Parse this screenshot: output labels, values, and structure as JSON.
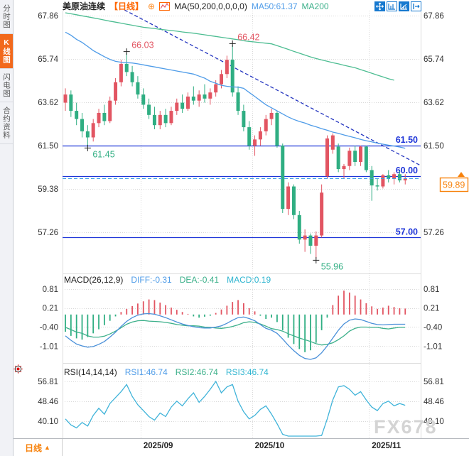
{
  "header": {
    "symbol": "美原油连续",
    "period_tag": "【日线】",
    "add_icon_glyph": "⊕",
    "ma_settings": "MA(50,200,0,0,0,0)",
    "ma50_label": "MA50:61.37",
    "ma200_label": "MA200"
  },
  "sidebar": {
    "items": [
      {
        "label": "分时图",
        "active": false
      },
      {
        "label": "K线图",
        "active": true
      },
      {
        "label": "闪电图",
        "active": false
      },
      {
        "label": "合约资料",
        "active": false
      }
    ]
  },
  "footer": {
    "period_label": "日线",
    "period_arrow": "▲"
  },
  "watermark": "FX678",
  "colors": {
    "up": "#e25562",
    "down": "#2fae82",
    "ma50": "#4f9ce8",
    "ma200": "#4dbd92",
    "hline": "#1d34d8",
    "trend": "#2233bf",
    "current_dash": "#3e9fe5",
    "accent": "#f7820c",
    "diff": "#4a90d9",
    "dea": "#3cb08a",
    "macd_cyan": "#2fb5d0",
    "rsi": "#3fb3d9",
    "axis_text": "#333333",
    "grid": "#d9d9d9",
    "separator": "#dcdcdc",
    "marker": "#222222",
    "watermark": "#d4d4d4"
  },
  "chart_data": {
    "type": "candlestick-with-indicators",
    "price_axis_ticks": [
      "67.86",
      "65.74",
      "63.62",
      "61.50",
      "59.38",
      "57.26"
    ],
    "right_axis_hidden_tick": "59.38",
    "x_labels": [
      "2025/09",
      "2025/10",
      "2025/11"
    ],
    "month_start_indices": [
      14,
      34,
      55
    ],
    "candles": [
      [
        63.6,
        64.3,
        63.2,
        64.0
      ],
      [
        64.0,
        64.2,
        62.9,
        63.2
      ],
      [
        63.2,
        63.6,
        62.5,
        62.8
      ],
      [
        62.8,
        63.1,
        61.9,
        62.2
      ],
      [
        62.2,
        62.5,
        61.45,
        61.9
      ],
      [
        61.9,
        62.8,
        61.7,
        62.6
      ],
      [
        62.6,
        63.3,
        62.4,
        63.1
      ],
      [
        63.1,
        63.5,
        62.5,
        62.7
      ],
      [
        62.7,
        63.9,
        62.6,
        63.7
      ],
      [
        63.7,
        64.8,
        63.5,
        64.6
      ],
      [
        64.6,
        65.7,
        64.4,
        65.5
      ],
      [
        65.5,
        66.03,
        64.9,
        65.1
      ],
      [
        65.1,
        65.4,
        64.4,
        64.6
      ],
      [
        64.6,
        64.9,
        63.8,
        64.0
      ],
      [
        64.0,
        64.3,
        63.3,
        63.5
      ],
      [
        63.5,
        63.8,
        62.8,
        63.0
      ],
      [
        63.0,
        63.4,
        62.3,
        62.5
      ],
      [
        62.5,
        63.2,
        62.3,
        63.0
      ],
      [
        63.0,
        63.3,
        62.4,
        62.6
      ],
      [
        62.6,
        63.4,
        62.5,
        63.2
      ],
      [
        63.2,
        63.8,
        63.0,
        63.6
      ],
      [
        63.6,
        64.0,
        63.1,
        63.3
      ],
      [
        63.3,
        64.1,
        63.2,
        63.9
      ],
      [
        63.9,
        64.4,
        63.5,
        63.7
      ],
      [
        63.7,
        64.2,
        63.4,
        64.0
      ],
      [
        64.0,
        64.5,
        63.6,
        63.8
      ],
      [
        63.8,
        64.3,
        63.5,
        64.1
      ],
      [
        64.1,
        64.7,
        63.9,
        64.5
      ],
      [
        64.5,
        65.2,
        64.3,
        65.0
      ],
      [
        65.0,
        65.9,
        64.8,
        65.7
      ],
      [
        65.7,
        66.42,
        63.9,
        64.1
      ],
      [
        64.1,
        64.4,
        63.0,
        63.2
      ],
      [
        63.2,
        63.5,
        62.2,
        62.4
      ],
      [
        62.4,
        62.7,
        61.3,
        61.5
      ],
      [
        61.5,
        62.0,
        61.0,
        61.8
      ],
      [
        61.8,
        62.4,
        61.5,
        62.2
      ],
      [
        62.2,
        63.0,
        62.0,
        62.8
      ],
      [
        62.8,
        63.3,
        62.5,
        63.1
      ],
      [
        63.1,
        63.2,
        61.4,
        61.5
      ],
      [
        61.5,
        61.6,
        58.2,
        58.4
      ],
      [
        58.4,
        59.7,
        58.1,
        59.5
      ],
      [
        59.5,
        59.6,
        57.9,
        58.1
      ],
      [
        58.1,
        58.3,
        56.7,
        56.9
      ],
      [
        56.9,
        57.4,
        56.3,
        57.1
      ],
      [
        57.1,
        57.2,
        56.2,
        56.6
      ],
      [
        56.6,
        57.3,
        55.96,
        57.1
      ],
      [
        57.1,
        59.6,
        57.0,
        59.2
      ],
      [
        60.0,
        62.0,
        59.9,
        61.85
      ],
      [
        61.3,
        62.1,
        61.1,
        62.0
      ],
      [
        61.45,
        61.6,
        60.2,
        60.35
      ],
      [
        60.35,
        60.6,
        59.9,
        60.5
      ],
      [
        60.5,
        61.4,
        60.3,
        61.25
      ],
      [
        61.25,
        61.5,
        60.5,
        60.7
      ],
      [
        60.7,
        61.5,
        60.5,
        61.45
      ],
      [
        61.45,
        61.5,
        60.2,
        60.3
      ],
      [
        60.3,
        60.5,
        58.8,
        59.55
      ],
      [
        59.55,
        59.9,
        59.3,
        59.5
      ],
      [
        59.5,
        60.1,
        59.4,
        60.05
      ],
      [
        60.05,
        60.3,
        59.7,
        59.9
      ],
      [
        59.9,
        60.2,
        59.6,
        60.1
      ],
      [
        60.1,
        60.25,
        59.7,
        59.8
      ],
      [
        59.8,
        60.1,
        59.6,
        59.89
      ]
    ],
    "ma50": [
      67.05,
      66.9,
      66.7,
      66.55,
      66.35,
      66.15,
      66.0,
      65.85,
      65.72,
      65.62,
      65.58,
      65.56,
      65.54,
      65.5,
      65.45,
      65.4,
      65.35,
      65.3,
      65.25,
      65.2,
      65.15,
      65.1,
      65.05,
      65.0,
      64.9,
      64.8,
      64.65,
      64.55,
      64.45,
      64.4,
      64.37,
      64.36,
      64.3,
      64.1,
      63.9,
      63.7,
      63.5,
      63.35,
      63.2,
      63.05,
      62.9,
      62.78,
      62.68,
      62.6,
      62.5,
      62.42,
      62.33,
      62.25,
      62.16,
      62.1,
      62.02,
      61.95,
      61.88,
      61.8,
      61.74,
      61.68,
      61.62,
      61.57,
      61.52,
      61.48,
      61.43,
      61.37
    ],
    "ma200": [
      68.0,
      67.95,
      67.9,
      67.85,
      67.8,
      67.75,
      67.7,
      67.64,
      67.59,
      67.54,
      67.49,
      67.44,
      67.39,
      67.34,
      67.29,
      67.26,
      67.23,
      67.19,
      67.16,
      67.13,
      67.1,
      67.06,
      67.03,
      67.0,
      66.96,
      66.92,
      66.88,
      66.84,
      66.8,
      66.76,
      66.72,
      66.68,
      66.63,
      66.6,
      66.57,
      66.54,
      66.51,
      66.48,
      66.39,
      66.3,
      66.21,
      66.11,
      66.02,
      65.93,
      65.84,
      65.76,
      65.69,
      65.63,
      65.56,
      65.5,
      65.43,
      65.37,
      65.31,
      65.22,
      65.13,
      65.04,
      64.95,
      64.86,
      64.77,
      64.7,
      null,
      null
    ],
    "trendline": {
      "from": {
        "index": 10.6,
        "price": 68.14
      },
      "to": {
        "index": 63.8,
        "price": 60.52
      }
    },
    "hlines": [
      {
        "price": 61.5,
        "label": "61.50"
      },
      {
        "price": 60.0,
        "label": "60.00"
      },
      {
        "price": 57.0,
        "label": "57.00"
      }
    ],
    "current_price": {
      "value": 59.89,
      "label": "59.89"
    },
    "annotations": [
      {
        "index": 4,
        "price": 61.45,
        "text": "61.45",
        "position": "below",
        "tone": "green"
      },
      {
        "index": 11,
        "price": 66.03,
        "text": "66.03",
        "position": "above",
        "tone": "red"
      },
      {
        "index": 30,
        "price": 66.42,
        "text": "66.42",
        "position": "above",
        "tone": "red"
      },
      {
        "index": 45,
        "price": 55.96,
        "text": "55.96",
        "position": "below",
        "tone": "green"
      }
    ],
    "macd": {
      "title": "MACD(26,12,9)",
      "diff_label": "DIFF:-0.31",
      "dea_label": "DEA:-0.41",
      "macd_label": "MACD:0.19",
      "axis_ticks": [
        "0.81",
        "0.21",
        "-0.40",
        "-1.01"
      ],
      "hist": [
        -0.55,
        -0.68,
        -0.76,
        -0.8,
        -0.72,
        -0.6,
        -0.47,
        -0.34,
        -0.2,
        -0.06,
        0.08,
        0.18,
        0.27,
        0.35,
        0.42,
        0.48,
        0.46,
        0.38,
        0.3,
        0.22,
        0.15,
        0.08,
        0.02,
        -0.06,
        -0.1,
        -0.07,
        -0.04,
        0.05,
        0.16,
        0.28,
        0.4,
        0.46,
        0.36,
        0.2,
        0.1,
        -0.04,
        -0.14,
        -0.1,
        -0.24,
        -0.5,
        -0.74,
        -0.94,
        -1.1,
        -1.2,
        -1.14,
        -0.9,
        -0.5,
        -0.1,
        0.3,
        0.6,
        0.76,
        0.7,
        0.6,
        0.48,
        0.36,
        0.26,
        0.18,
        0.22,
        0.28,
        0.24,
        0.2,
        0.19
      ],
      "diff": [
        -0.68,
        -0.82,
        -0.94,
        -1.0,
        -1.04,
        -1.02,
        -0.95,
        -0.86,
        -0.72,
        -0.56,
        -0.38,
        -0.22,
        -0.1,
        -0.02,
        0.02,
        0.03,
        0.01,
        -0.04,
        -0.1,
        -0.17,
        -0.24,
        -0.3,
        -0.35,
        -0.39,
        -0.42,
        -0.43,
        -0.43,
        -0.4,
        -0.36,
        -0.28,
        -0.18,
        -0.1,
        -0.08,
        -0.13,
        -0.2,
        -0.32,
        -0.44,
        -0.5,
        -0.6,
        -0.78,
        -0.98,
        -1.15,
        -1.3,
        -1.4,
        -1.43,
        -1.38,
        -1.22,
        -1.0,
        -0.75,
        -0.5,
        -0.3,
        -0.18,
        -0.14,
        -0.16,
        -0.22,
        -0.28,
        -0.32,
        -0.33,
        -0.32,
        -0.31,
        -0.31,
        -0.31
      ],
      "dea": [
        -0.41,
        -0.48,
        -0.56,
        -0.6,
        -0.68,
        -0.72,
        -0.72,
        -0.69,
        -0.62,
        -0.53,
        -0.42,
        -0.31,
        -0.24,
        -0.2,
        -0.19,
        -0.21,
        -0.22,
        -0.23,
        -0.25,
        -0.28,
        -0.32,
        -0.34,
        -0.36,
        -0.36,
        -0.37,
        -0.4,
        -0.41,
        -0.43,
        -0.44,
        -0.42,
        -0.38,
        -0.33,
        -0.26,
        -0.23,
        -0.25,
        -0.3,
        -0.37,
        -0.45,
        -0.48,
        -0.53,
        -0.61,
        -0.68,
        -0.75,
        -0.8,
        -0.86,
        -0.93,
        -0.97,
        -0.95,
        -0.9,
        -0.8,
        -0.68,
        -0.53,
        -0.44,
        -0.4,
        -0.4,
        -0.41,
        -0.41,
        -0.44,
        -0.46,
        -0.43,
        -0.41,
        -0.41
      ]
    },
    "rsi": {
      "title": "RSI(14,14,14)",
      "rsi1_label": "RSI1:46.74",
      "rsi2_label": "RSI2:46.74",
      "rsi3_label": "RSI3:46.74",
      "axis_ticks": [
        "56.81",
        "48.46",
        "40.10"
      ],
      "values": [
        41.0,
        38.5,
        37.2,
        39.5,
        38.0,
        42.5,
        45.5,
        43.0,
        47.5,
        50.0,
        52.5,
        55.5,
        50.5,
        47.0,
        44.5,
        42.0,
        40.5,
        43.5,
        42.0,
        46.0,
        48.5,
        46.5,
        49.5,
        52.0,
        48.0,
        50.5,
        53.5,
        56.8,
        52.0,
        54.5,
        55.5,
        48.5,
        44.0,
        41.0,
        42.5,
        45.0,
        46.5,
        43.0,
        39.0,
        34.5,
        31.5,
        33.0,
        30.0,
        31.5,
        29.5,
        28.5,
        34.0,
        41.0,
        49.0,
        54.5,
        55.0,
        53.5,
        51.0,
        52.5,
        49.0,
        46.0,
        44.5,
        47.5,
        48.5,
        46.5,
        47.5,
        46.74
      ]
    }
  }
}
